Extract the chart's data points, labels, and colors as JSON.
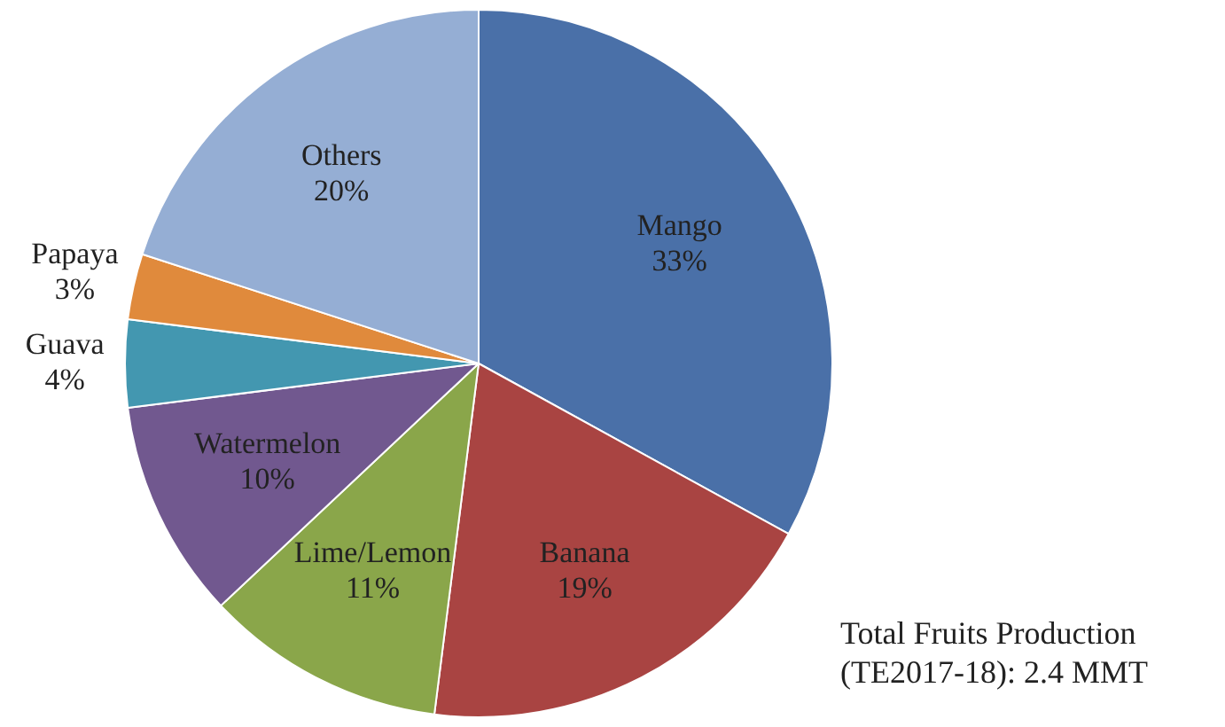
{
  "chart_data": {
    "type": "pie",
    "categories": [
      "Mango",
      "Banana",
      "Lime/Lemon",
      "Watermelon",
      "Guava",
      "Papaya",
      "Others"
    ],
    "values": [
      33,
      19,
      11,
      10,
      4,
      3,
      20
    ],
    "value_labels": [
      "33%",
      "19%",
      "11%",
      "10%",
      "4%",
      "3%",
      "20%"
    ],
    "colors": [
      "#4a70a8",
      "#a94442",
      "#8aa64a",
      "#71588f",
      "#4397b0",
      "#e08a3c",
      "#95aed4"
    ],
    "legend": false,
    "annotations": [
      "Total Fruits Production (TE2017-18): 2.4 MMT"
    ]
  }
}
